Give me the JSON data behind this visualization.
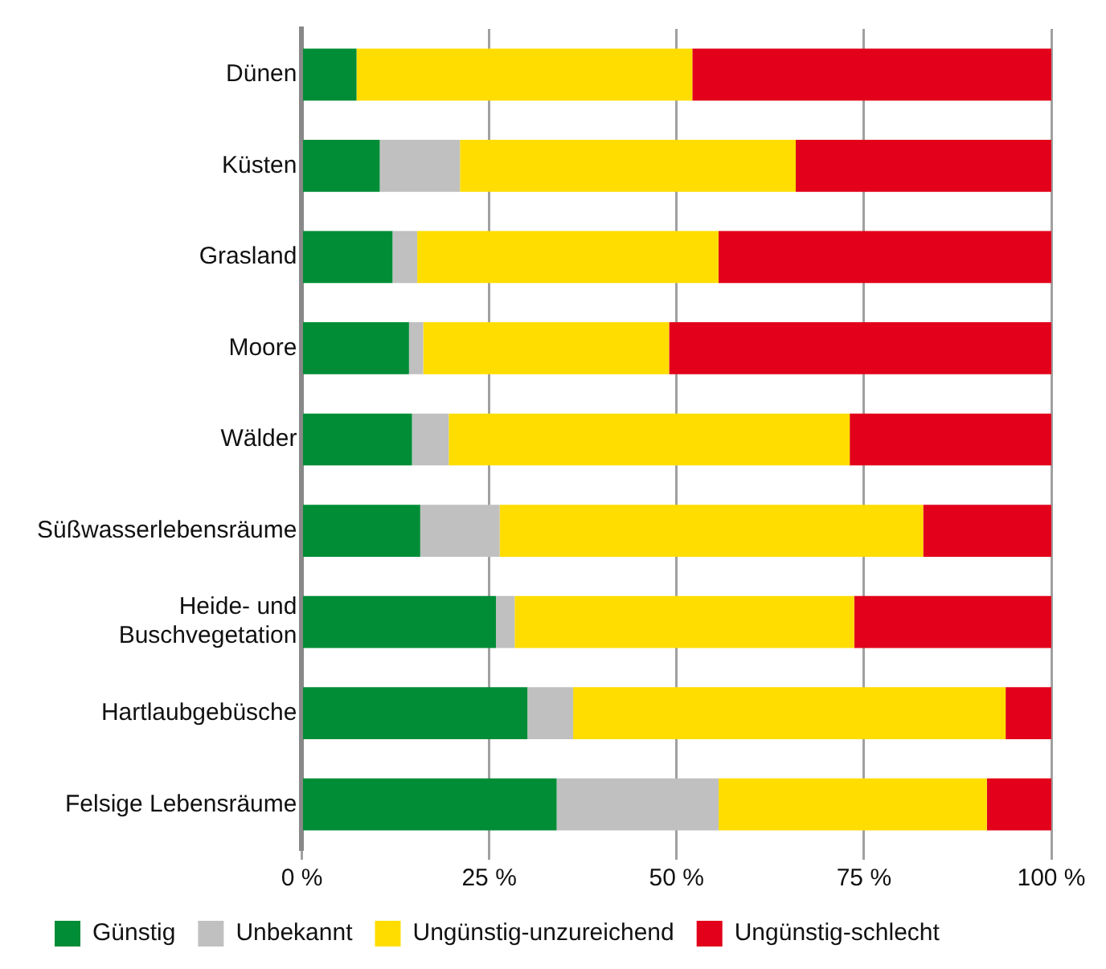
{
  "chart_data": {
    "type": "bar",
    "orientation": "horizontal",
    "stacked": true,
    "categories": [
      "Dünen",
      "Küsten",
      "Grasland",
      "Moore",
      "Wälder",
      "Süßwasserlebensräume",
      "Heide- und\nBuschvegetation",
      "Hartlaubgebüsche",
      "Felsige Lebensräume"
    ],
    "series": [
      {
        "name": "Günstig",
        "color": "#008d36",
        "values": [
          7.3,
          10.4,
          12.1,
          14.3,
          14.7,
          15.8,
          25.9,
          30.1,
          34.0
        ]
      },
      {
        "name": "Unbekannt",
        "color": "#c0c0c0",
        "values": [
          0,
          10.7,
          3.3,
          1.9,
          4.9,
          10.6,
          2.5,
          6.1,
          21.6
        ]
      },
      {
        "name": "Ungünstig-unzureichend",
        "color": "#ffdd00",
        "values": [
          44.8,
          44.8,
          40.2,
          32.8,
          53.5,
          56.5,
          45.3,
          57.7,
          35.8
        ]
      },
      {
        "name": "Ungünstig-schlecht",
        "color": "#e2001a",
        "values": [
          47.9,
          34.1,
          44.4,
          51.0,
          26.9,
          17.1,
          26.3,
          6.1,
          8.6
        ]
      }
    ],
    "xlim": [
      0,
      100
    ],
    "xticks": [
      {
        "value": 0,
        "label": "0 %"
      },
      {
        "value": 25,
        "label": "25 %"
      },
      {
        "value": 50,
        "label": "50 %"
      },
      {
        "value": 75,
        "label": "75 %"
      },
      {
        "value": 100,
        "label": "100 %"
      }
    ],
    "grid": "x",
    "legend": "bottom"
  }
}
